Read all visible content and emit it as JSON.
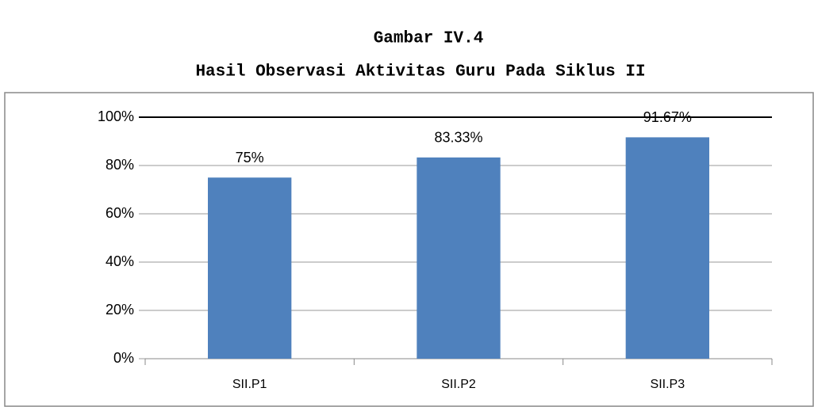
{
  "chart_data": {
    "type": "bar",
    "title": "Gambar IV.4",
    "subtitle": "Hasil Observasi Aktivitas Guru Pada Siklus II",
    "categories": [
      "SII.P1",
      "SII.P2",
      "SII.P3"
    ],
    "values": [
      75,
      83.33,
      91.67
    ],
    "value_labels": [
      "75%",
      "83.33%",
      "91.67%"
    ],
    "color": "#4f81bd",
    "ylim": [
      0,
      100
    ],
    "yticks": [
      {
        "value": 0,
        "label": "0%"
      },
      {
        "value": 20,
        "label": "20%"
      },
      {
        "value": 40,
        "label": "40%"
      },
      {
        "value": 60,
        "label": "60%"
      },
      {
        "value": 80,
        "label": "80%"
      },
      {
        "value": 100,
        "label": "100%"
      }
    ],
    "grid": true
  }
}
